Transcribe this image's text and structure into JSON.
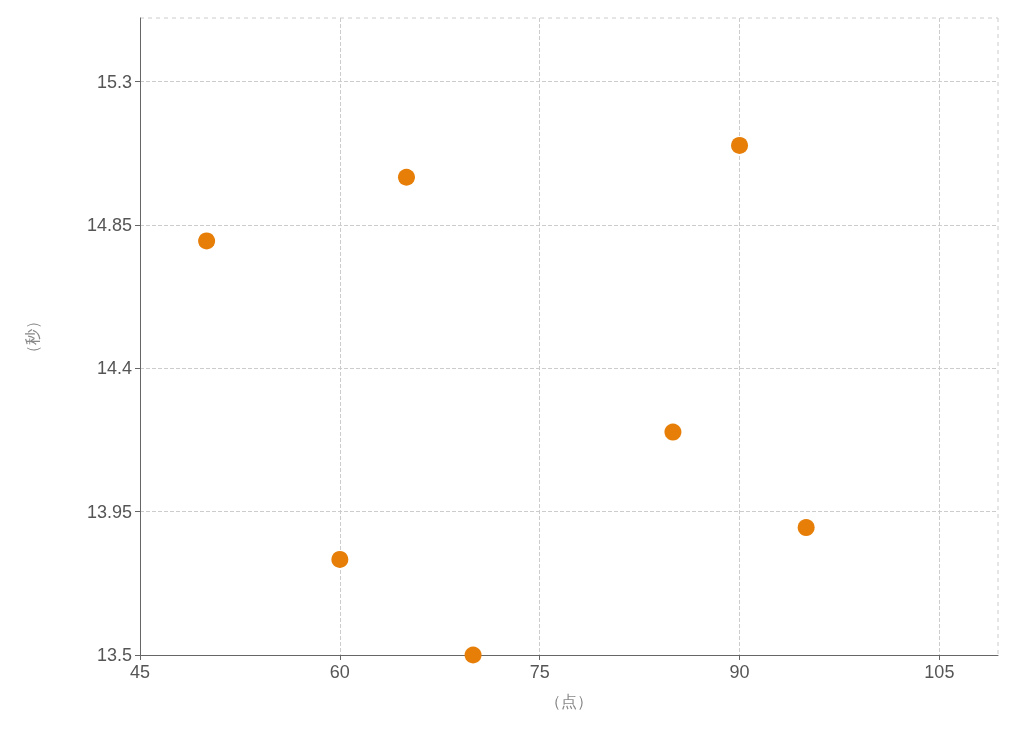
{
  "chart_data": {
    "type": "scatter",
    "xlabel": "（点）",
    "ylabel": "（秒）",
    "x": [
      50,
      60,
      65,
      70,
      85,
      90,
      95
    ],
    "series": [
      {
        "color": "#e67e08",
        "values": [
          14.8,
          13.8,
          15.0,
          13.5,
          14.2,
          15.1,
          13.9
        ]
      }
    ],
    "xlim": [
      45,
      109.4
    ],
    "xticks": [
      45,
      60,
      75,
      90,
      105
    ],
    "ylim": [
      13.5,
      15.5
    ],
    "yticks": [
      13.5,
      13.95,
      14.4,
      14.85,
      15.3
    ],
    "grid": true,
    "marker": "circle"
  }
}
